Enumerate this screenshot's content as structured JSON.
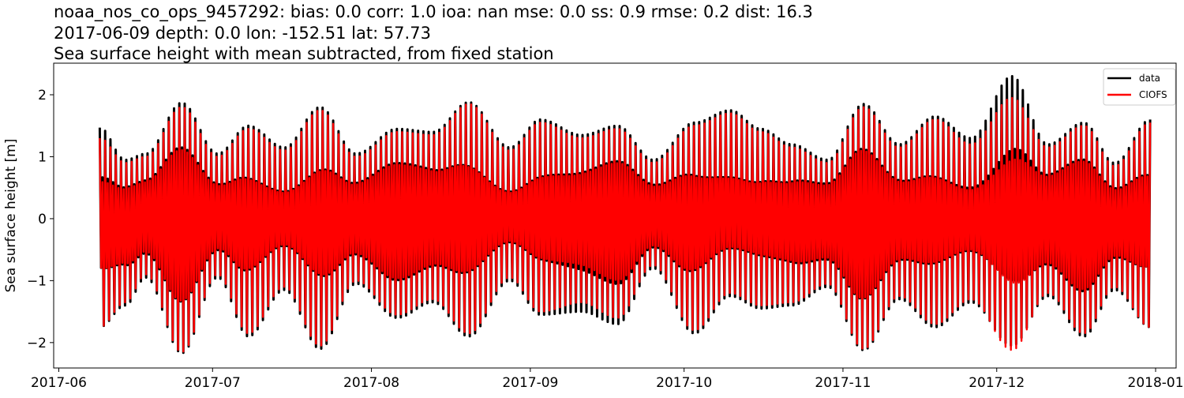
{
  "chart_data": {
    "type": "line",
    "title_lines": [
      "noaa_nos_co_ops_9457292: bias: 0.0  corr: 1.0  ioa: nan  mse: 0.0  ss: 0.9  rmse: 0.2  dist: 16.3",
      "2017-06-09 depth: 0.0 lon: -152.51 lat: 57.73",
      "Sea surface height with mean subtracted, from fixed station"
    ],
    "xlabel": "",
    "ylabel": "Sea surface height [m]",
    "xlim": [
      "2017-05-31",
      "2018-01-05"
    ],
    "ylim": [
      -2.41,
      2.51
    ],
    "x_ticks": [
      "2017-06",
      "2017-07",
      "2017-08",
      "2017-09",
      "2017-10",
      "2017-11",
      "2017-12",
      "2018-01"
    ],
    "y_ticks": [
      -2,
      -1,
      0,
      1,
      2
    ],
    "grid": false,
    "legend_position": "top-right",
    "envelope_dates": [
      "2017-06-09",
      "2017-06-14",
      "2017-06-18",
      "2017-06-25",
      "2017-07-02",
      "2017-07-08",
      "2017-07-15",
      "2017-07-22",
      "2017-07-29",
      "2017-08-06",
      "2017-08-13",
      "2017-08-20",
      "2017-08-28",
      "2017-09-03",
      "2017-09-11",
      "2017-09-18",
      "2017-09-25",
      "2017-10-03",
      "2017-10-10",
      "2017-10-16",
      "2017-10-22",
      "2017-10-29",
      "2017-11-05",
      "2017-11-12",
      "2017-11-19",
      "2017-11-26",
      "2017-12-04",
      "2017-12-11",
      "2017-12-18",
      "2017-12-24",
      "2017-12-31"
    ],
    "series": [
      {
        "name": "data",
        "color": "#000000",
        "high": [
          1.47,
          0.95,
          1.05,
          1.87,
          1.05,
          1.5,
          1.15,
          1.8,
          1.05,
          1.45,
          1.4,
          1.88,
          1.15,
          1.6,
          1.35,
          1.5,
          0.95,
          1.55,
          1.75,
          1.45,
          1.2,
          0.95,
          1.85,
          1.2,
          1.65,
          1.3,
          2.3,
          1.2,
          1.55,
          0.9,
          1.6
        ],
        "low": [
          -1.75,
          -1.4,
          -0.95,
          -2.17,
          -0.95,
          -1.9,
          -1.15,
          -2.1,
          -1.05,
          -1.6,
          -1.35,
          -1.9,
          -1.0,
          -1.55,
          -1.5,
          -1.7,
          -0.8,
          -1.85,
          -1.25,
          -1.45,
          -1.4,
          -1.1,
          -2.12,
          -1.3,
          -1.75,
          -1.35,
          -2.05,
          -1.25,
          -1.9,
          -1.15,
          -1.75
        ]
      },
      {
        "name": "CIOFS",
        "color": "#ff0000",
        "high": [
          1.3,
          0.9,
          1.0,
          1.8,
          1.0,
          1.45,
          1.1,
          1.75,
          1.0,
          1.4,
          1.35,
          1.85,
          1.1,
          1.55,
          1.3,
          1.45,
          0.9,
          1.5,
          1.7,
          1.4,
          1.15,
          0.9,
          1.8,
          1.15,
          1.6,
          1.2,
          1.95,
          1.15,
          1.5,
          0.85,
          1.55
        ],
        "low": [
          -1.75,
          -1.35,
          -0.9,
          -2.15,
          -0.9,
          -1.85,
          -1.1,
          -2.05,
          -1.0,
          -1.55,
          -1.3,
          -1.85,
          -0.95,
          -1.5,
          -1.35,
          -1.6,
          -0.75,
          -1.8,
          -1.2,
          -1.4,
          -1.35,
          -1.05,
          -2.1,
          -1.25,
          -1.7,
          -1.3,
          -2.12,
          -1.2,
          -1.85,
          -1.1,
          -1.75
        ]
      }
    ]
  }
}
